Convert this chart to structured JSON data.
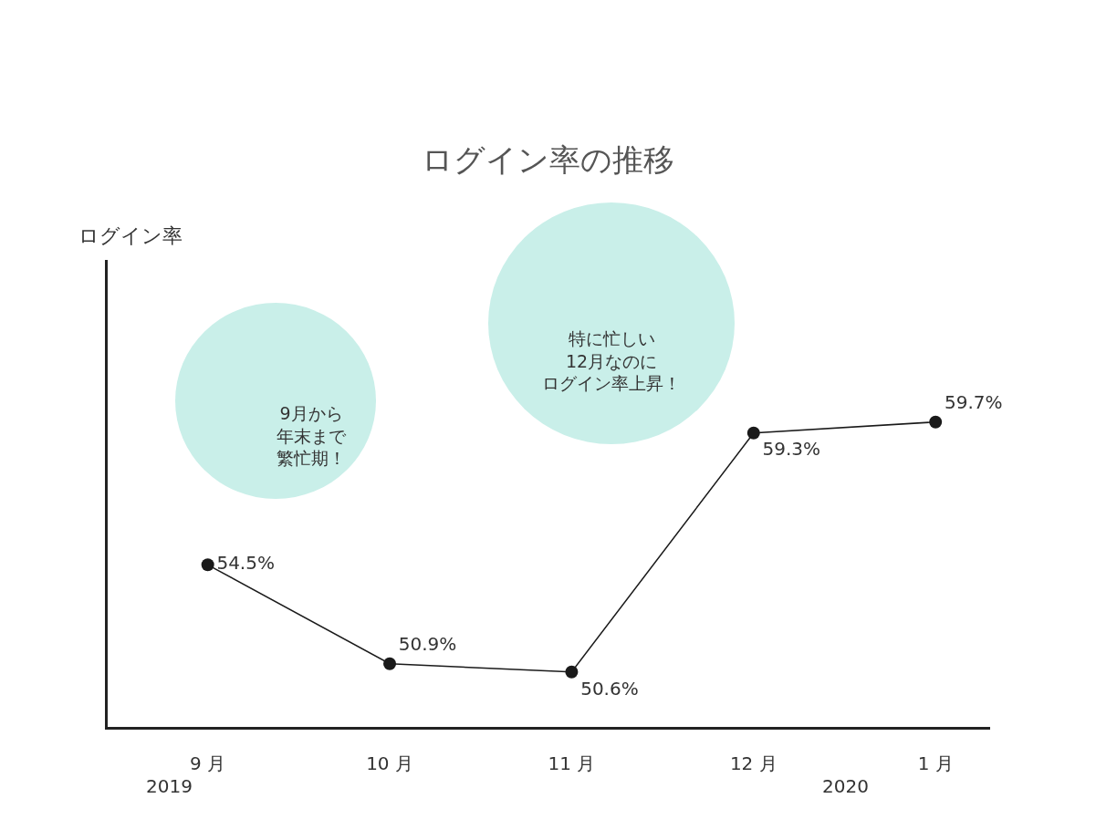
{
  "chart_data": {
    "type": "line",
    "title": "ログイン率の推移",
    "ylabel": "ログイン率",
    "categories": [
      "9 月",
      "10 月",
      "11 月",
      "12 月",
      "1 月"
    ],
    "series": [
      {
        "color": "#1a1a1a",
        "values": [
          54.5,
          50.9,
          50.6,
          59.3,
          59.7
        ],
        "value_labels": [
          "54.5%",
          "50.9%",
          "50.6%",
          "59.3%",
          "59.7%"
        ]
      }
    ],
    "ylim": [
      48.6,
      65.6
    ],
    "tick_labels": "x",
    "marker": "circle",
    "line_style": "solid",
    "grid": false,
    "annotations": [
      "9月から年末まで繁忙期！",
      "特に忙しい12月なのにログイン率上昇！",
      "2019",
      "2020"
    ]
  }
}
